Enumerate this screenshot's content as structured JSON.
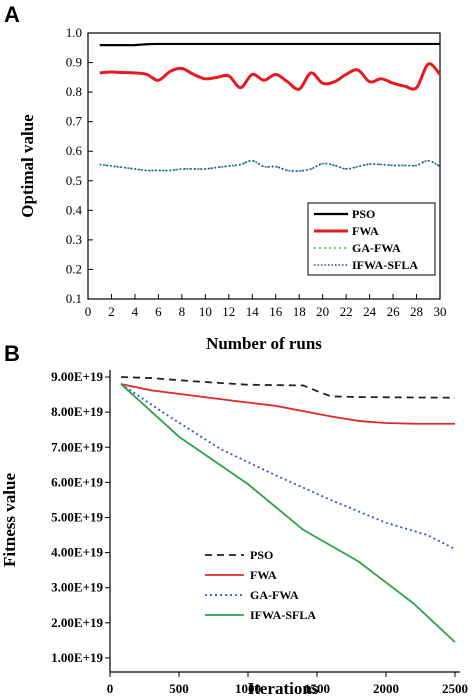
{
  "chart_data": [
    {
      "panel_label": "A",
      "type": "line",
      "title": "",
      "xlabel": "Number of runs",
      "ylabel": "Optimal value",
      "xlim": [
        0,
        30
      ],
      "ylim": [
        0.1,
        1.0
      ],
      "xticks": [
        0,
        2,
        4,
        6,
        8,
        10,
        12,
        14,
        16,
        18,
        20,
        22,
        24,
        26,
        28,
        30
      ],
      "yticks": [
        0.1,
        0.2,
        0.3,
        0.4,
        0.5,
        0.6,
        0.7,
        0.8,
        0.9,
        1.0
      ],
      "ytick_labels": [
        "0.1",
        "0.2",
        "0.3",
        "0.4",
        "0.5",
        "0.6",
        "0.7",
        "0.8",
        "0.9",
        "1.0"
      ],
      "grid": false,
      "legend_position": "bottom-right",
      "x": [
        1,
        2,
        3,
        4,
        5,
        6,
        7,
        8,
        9,
        10,
        11,
        12,
        13,
        14,
        15,
        16,
        17,
        18,
        19,
        20,
        21,
        22,
        23,
        24,
        25,
        26,
        27,
        28,
        29,
        30
      ],
      "series": [
        {
          "name": "PSO",
          "color": "#000000",
          "dash": "solid",
          "width": 2.2,
          "values": [
            0.959,
            0.959,
            0.959,
            0.959,
            0.962,
            0.963,
            0.963,
            0.963,
            0.963,
            0.963,
            0.963,
            0.963,
            0.963,
            0.963,
            0.963,
            0.963,
            0.963,
            0.963,
            0.963,
            0.963,
            0.963,
            0.963,
            0.963,
            0.963,
            0.963,
            0.963,
            0.963,
            0.963,
            0.963,
            0.963
          ]
        },
        {
          "name": "FWA",
          "color": "#e8191f",
          "dash": "solid",
          "width": 3,
          "values": [
            0.865,
            0.868,
            0.866,
            0.865,
            0.86,
            0.84,
            0.87,
            0.88,
            0.86,
            0.845,
            0.85,
            0.855,
            0.815,
            0.86,
            0.84,
            0.86,
            0.835,
            0.81,
            0.865,
            0.83,
            0.835,
            0.86,
            0.875,
            0.835,
            0.845,
            0.83,
            0.82,
            0.815,
            0.895,
            0.86
          ]
        },
        {
          "name": "GA-FWA",
          "color": "#2bd12b",
          "dash": "2,3",
          "width": 1.6,
          "values": [
            0.555,
            0.55,
            0.545,
            0.54,
            0.535,
            0.535,
            0.535,
            0.54,
            0.54,
            0.54,
            0.545,
            0.55,
            0.555,
            0.568,
            0.548,
            0.548,
            0.535,
            0.533,
            0.54,
            0.558,
            0.552,
            0.54,
            0.548,
            0.556,
            0.555,
            0.552,
            0.552,
            0.552,
            0.568,
            0.548
          ]
        },
        {
          "name": "IFWA-SFLA",
          "color": "#1c3fc8",
          "dash": "1.5,2",
          "width": 1.6,
          "values": [
            0.555,
            0.55,
            0.545,
            0.54,
            0.535,
            0.535,
            0.535,
            0.54,
            0.54,
            0.54,
            0.545,
            0.55,
            0.555,
            0.568,
            0.548,
            0.548,
            0.535,
            0.533,
            0.54,
            0.558,
            0.552,
            0.54,
            0.548,
            0.556,
            0.555,
            0.552,
            0.552,
            0.552,
            0.568,
            0.548
          ]
        }
      ]
    },
    {
      "panel_label": "B",
      "type": "line",
      "title": "",
      "xlabel": "Iterations",
      "ylabel": "Fitness value",
      "xlim": [
        0,
        2500
      ],
      "ylim": [
        6000000000000000000,
        92000000000000000000
      ],
      "xticks": [
        0,
        500,
        1000,
        1500,
        2000,
        2500
      ],
      "yticks": [
        10000000000000000000,
        20000000000000000000,
        30000000000000000000,
        40000000000000000000,
        50000000000000000000,
        60000000000000000000,
        70000000000000000000,
        80000000000000000000,
        90000000000000000000
      ],
      "ytick_labels": [
        "1.00E+19",
        "2.00E+19",
        "3.00E+19",
        "4.00E+19",
        "5.00E+19",
        "6.00E+19",
        "7.00E+19",
        "8.00E+19",
        "9.00E+19"
      ],
      "grid": false,
      "legend_position": "bottom-left",
      "series": [
        {
          "name": "PSO",
          "color": "#222222",
          "dash": "7,5",
          "width": 1.8,
          "x": [
            80,
            300,
            600,
            1000,
            1400,
            1500,
            1600,
            1800,
            2100,
            2500
          ],
          "values": [
            90000000000000000000,
            89700000000000000000,
            88800000000000000000,
            87800000000000000000,
            87600000000000000000,
            86000000000000000000,
            84500000000000000000,
            84300000000000000000,
            84200000000000000000,
            84100000000000000000
          ]
        },
        {
          "name": "FWA",
          "color": "#e3262a",
          "dash": "solid",
          "width": 1.8,
          "x": [
            80,
            300,
            600,
            900,
            1200,
            1400,
            1600,
            1800,
            2000,
            2200,
            2500
          ],
          "values": [
            88000000000000000000,
            86200000000000000000,
            84700000000000000000,
            83200000000000000000,
            81800000000000000000,
            80300000000000000000,
            78800000000000000000,
            77500000000000000000,
            76900000000000000000,
            76700000000000000000,
            76700000000000000000
          ]
        },
        {
          "name": "GA-FWA",
          "color": "#2b57c8",
          "dash": "2,3",
          "width": 1.8,
          "x": [
            80,
            400,
            800,
            1200,
            1600,
            2000,
            2300,
            2500
          ],
          "values": [
            88000000000000000000,
            79500000000000000000,
            69500000000000000000,
            62000000000000000000,
            55000000000000000000,
            48500000000000000000,
            45000000000000000000,
            41000000000000000000
          ]
        },
        {
          "name": "IFWA-SFLA",
          "color": "#2aa34a",
          "dash": "solid",
          "width": 1.8,
          "x": [
            80,
            500,
            1000,
            1400,
            1800,
            2200,
            2500
          ],
          "values": [
            88000000000000000000,
            73000000000000000000,
            59500000000000000000,
            46500000000000000000,
            37500000000000000000,
            25500000000000000000,
            14500000000000000000
          ]
        }
      ]
    }
  ]
}
